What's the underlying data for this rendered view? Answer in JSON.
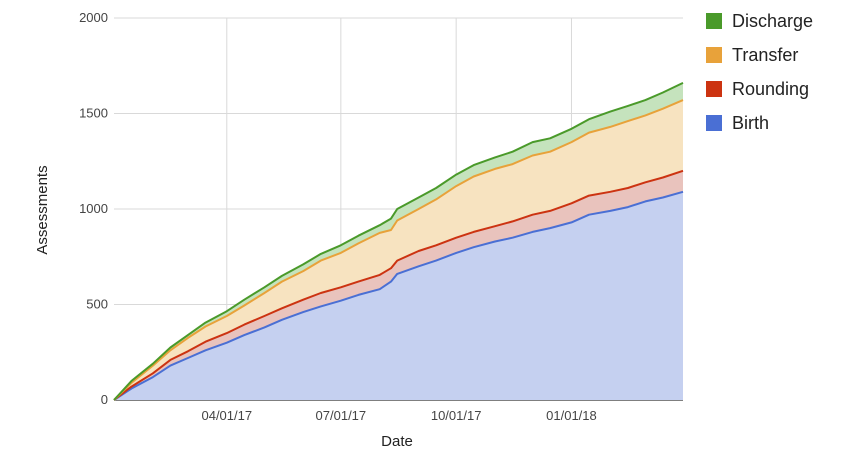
{
  "chart_data": {
    "type": "area",
    "stacked": true,
    "xlabel": "Date",
    "ylabel": "Assessments",
    "x_range": [
      "2017-01-01",
      "2018-03-31"
    ],
    "ylim": [
      0,
      2000
    ],
    "y_ticks": [
      0,
      500,
      1000,
      1500,
      2000
    ],
    "x_ticks": [
      {
        "date": "2017-04-01",
        "label": "04/01/17"
      },
      {
        "date": "2017-07-01",
        "label": "07/01/17"
      },
      {
        "date": "2017-10-01",
        "label": "10/01/17"
      },
      {
        "date": "2018-01-01",
        "label": "01/01/18"
      }
    ],
    "grid": true,
    "legend_position": "right",
    "x": [
      "2017-01-01",
      "2017-01-15",
      "2017-02-01",
      "2017-02-15",
      "2017-03-01",
      "2017-03-15",
      "2017-04-01",
      "2017-04-15",
      "2017-05-01",
      "2017-05-15",
      "2017-06-01",
      "2017-06-15",
      "2017-07-01",
      "2017-07-15",
      "2017-08-01",
      "2017-08-10",
      "2017-08-15",
      "2017-09-01",
      "2017-09-15",
      "2017-10-01",
      "2017-10-15",
      "2017-11-01",
      "2017-11-15",
      "2017-12-01",
      "2017-12-15",
      "2018-01-01",
      "2018-01-15",
      "2018-02-01",
      "2018-02-15",
      "2018-03-01",
      "2018-03-15",
      "2018-03-31"
    ],
    "series": [
      {
        "name": "Birth",
        "color": "#4a6fd4",
        "fill": "#c5d0f0",
        "values": [
          0,
          60,
          120,
          180,
          220,
          260,
          300,
          340,
          380,
          420,
          460,
          490,
          520,
          550,
          580,
          620,
          660,
          700,
          730,
          770,
          800,
          830,
          850,
          880,
          900,
          930,
          970,
          990,
          1010,
          1040,
          1060,
          1090
        ]
      },
      {
        "name": "Rounding",
        "color": "#cc3311",
        "fill": "#e9c3bd",
        "values": [
          0,
          10,
          20,
          30,
          35,
          45,
          50,
          55,
          60,
          60,
          65,
          70,
          70,
          70,
          75,
          70,
          70,
          80,
          80,
          80,
          80,
          80,
          85,
          90,
          90,
          100,
          100,
          100,
          100,
          100,
          105,
          110
        ]
      },
      {
        "name": "Transfer",
        "color": "#e8a23a",
        "fill": "#f7e3c0",
        "values": [
          0,
          20,
          40,
          50,
          70,
          80,
          90,
          100,
          120,
          140,
          150,
          170,
          180,
          200,
          220,
          200,
          210,
          220,
          240,
          270,
          290,
          300,
          300,
          310,
          310,
          320,
          330,
          340,
          350,
          350,
          360,
          370
        ]
      },
      {
        "name": "Discharge",
        "color": "#4a9a2a",
        "fill": "#c5e3bd",
        "values": [
          0,
          10,
          10,
          15,
          15,
          20,
          25,
          30,
          30,
          30,
          35,
          35,
          40,
          40,
          40,
          60,
          60,
          60,
          60,
          60,
          60,
          60,
          65,
          70,
          70,
          70,
          70,
          80,
          80,
          80,
          85,
          90
        ]
      }
    ]
  }
}
